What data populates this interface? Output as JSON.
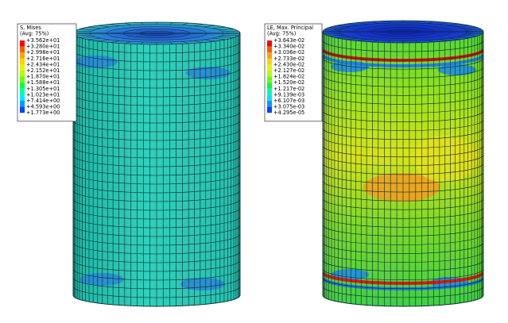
{
  "panels": [
    {
      "legend": {
        "title": [
          "S, Mises",
          "(Avg: 75%)"
        ],
        "labels": [
          "+3.562e+01",
          "+3.280e+01",
          "+2.998e+01",
          "+2.716e+01",
          "+2.434e+01",
          "+2.152e+01",
          "+1.870e+01",
          "+1.588e+01",
          "+1.305e+01",
          "+1.023e+01",
          "+7.414e+00",
          "+4.593e+00",
          "+1.773e+00"
        ]
      }
    },
    {
      "legend": {
        "title": [
          "LE, Max. Principal",
          "(Avg: 75%)"
        ],
        "labels": [
          "+3.643e-02",
          "+3.340e-02",
          "+3.036e-02",
          "+2.733e-02",
          "+2.430e-02",
          "+2.127e-02",
          "+1.824e-02",
          "+1.520e-02",
          "+1.217e-02",
          "+9.139e-03",
          "+6.107e-03",
          "+3.075e-03",
          "+4.295e-05"
        ]
      }
    }
  ]
}
